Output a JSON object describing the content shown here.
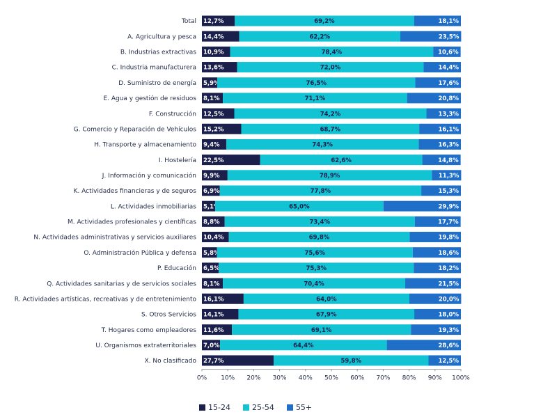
{
  "chart_data": {
    "type": "bar",
    "orientation": "horizontal",
    "stacked": true,
    "percent": true,
    "categories": [
      "Total",
      "A. Agricultura y pesca",
      "B. Industrias extractivas",
      "C. Industria manufacturera",
      "D. Suministro de energía",
      "E. Agua y gestión de residuos",
      "F. Construcción",
      "G. Comercio y Reparación de Vehículos",
      "H. Transporte y almacenamiento",
      "I. Hostelería",
      "J. Información y comunicación",
      "K. Actividades financieras y de seguros",
      "L. Actividades inmobiliarias",
      "M. Actividades profesionales y científicas",
      "N. Actividades administrativas y servicios auxiliares",
      "O. Administración Pública y defensa",
      "P. Educación",
      "Q. Actividades sanitarias y de servicios sociales",
      "R. Actividades artísticas, recreativas y de entretenimiento",
      "S. Otros Servicios",
      "T. Hogares como empleadores",
      "U. Organismos extraterritoriales",
      "X. No clasificado"
    ],
    "series": [
      {
        "name": "15-24",
        "color": "#1b1f4b",
        "label_color": "#ffffff",
        "values": [
          12.7,
          14.4,
          10.9,
          13.6,
          5.9,
          8.1,
          12.5,
          15.2,
          9.4,
          22.5,
          9.9,
          6.9,
          5.1,
          8.8,
          10.4,
          5.8,
          6.5,
          8.1,
          16.1,
          14.1,
          11.6,
          7.0,
          27.7
        ],
        "labels": [
          "12,7%",
          "14,4%",
          "10,9%",
          "13,6%",
          "5,9%",
          "8,1%",
          "12,5%",
          "15,2%",
          "9,4%",
          "22,5%",
          "9,9%",
          "6,9%",
          "5,1%",
          "8,8%",
          "10,4%",
          "5,8%",
          "6,5%",
          "8,1%",
          "16,1%",
          "14,1%",
          "11,6%",
          "7,0%",
          "27,7%"
        ]
      },
      {
        "name": "25-54",
        "color": "#12c3d3",
        "label_color": "#1b1f4b",
        "values": [
          69.2,
          62.2,
          78.4,
          72.0,
          76.5,
          71.1,
          74.2,
          68.7,
          74.3,
          62.6,
          78.9,
          77.8,
          65.0,
          73.4,
          69.8,
          75.6,
          75.3,
          70.4,
          64.0,
          67.9,
          69.1,
          64.4,
          59.8
        ],
        "labels": [
          "69,2%",
          "62,2%",
          "78,4%",
          "72,0%",
          "76,5%",
          "71,1%",
          "74,2%",
          "68,7%",
          "74,3%",
          "62,6%",
          "78,9%",
          "77,8%",
          "65,0%",
          "73,4%",
          "69,8%",
          "75,6%",
          "75,3%",
          "70,4%",
          "64,0%",
          "67,9%",
          "69,1%",
          "64,4%",
          "59,8%"
        ]
      },
      {
        "name": "55+",
        "color": "#1f6fc9",
        "label_color": "#ffffff",
        "values": [
          18.1,
          23.5,
          10.6,
          14.4,
          17.6,
          20.8,
          13.3,
          16.1,
          16.3,
          14.8,
          11.3,
          15.3,
          29.9,
          17.7,
          19.8,
          18.6,
          18.2,
          21.5,
          20.0,
          18.0,
          19.3,
          28.6,
          12.5
        ],
        "labels": [
          "18,1%",
          "23,5%",
          "10,6%",
          "14,4%",
          "17,6%",
          "20,8%",
          "13,3%",
          "16,1%",
          "16,3%",
          "14,8%",
          "11,3%",
          "15,3%",
          "29,9%",
          "17,7%",
          "19,8%",
          "18,6%",
          "18,2%",
          "21,5%",
          "20,0%",
          "18,0%",
          "19,3%",
          "28,6%",
          "12,5%"
        ]
      }
    ],
    "xlim": [
      0,
      100
    ],
    "x_ticks": [
      0,
      10,
      20,
      30,
      40,
      50,
      60,
      70,
      80,
      90,
      100
    ],
    "x_tick_labels": [
      "0%",
      "10%",
      "20%",
      "30%",
      "40%",
      "50%",
      "60%",
      "70%",
      "80%",
      "90%",
      "100%"
    ],
    "grid": false,
    "legend_position": "bottom"
  }
}
